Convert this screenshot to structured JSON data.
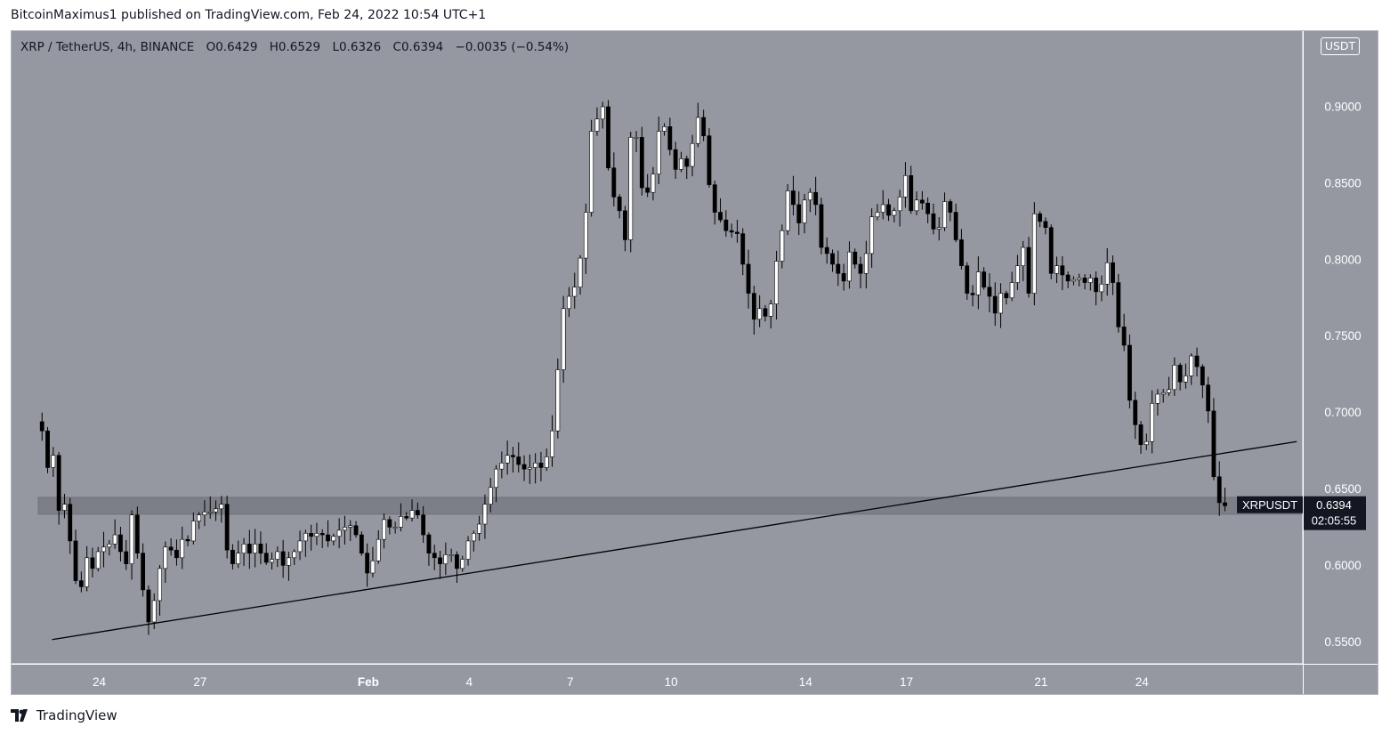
{
  "caption": "BitcoinMaximus1 published on TradingView.com, Feb 24, 2022 10:54 UTC+1",
  "legend": {
    "symbol": "XRP / TetherUS, 4h, BINANCE",
    "open_label": "O",
    "open": "0.6429",
    "high_label": "H",
    "high": "0.6529",
    "low_label": "L",
    "low": "0.6326",
    "close_label": "C",
    "close": "0.6394",
    "change": "−0.0035 (−0.54%)"
  },
  "currency": "USDT",
  "brand": "TradingView",
  "colors": {
    "background": "#9598a1",
    "up_candle": "#ffffff",
    "down_candle": "#000000",
    "zone": "#7c7f87",
    "trendline": "#000000",
    "axis_text": "#ffffff"
  },
  "chart_data": {
    "type": "candlestick",
    "price_ticks": [
      "0.9000",
      "0.8500",
      "0.8000",
      "0.7500",
      "0.7000",
      "0.6500",
      "0.6000",
      "0.5500"
    ],
    "y_values": [
      0.9,
      0.85,
      0.8,
      0.75,
      0.7,
      0.65,
      0.6,
      0.55
    ],
    "x_ticks": [
      {
        "label": "24",
        "day": 24
      },
      {
        "label": "27",
        "day": 27
      },
      {
        "label": "Feb",
        "day": 32
      },
      {
        "label": "4",
        "day": 35
      },
      {
        "label": "7",
        "day": 38
      },
      {
        "label": "10",
        "day": 41
      },
      {
        "label": "14",
        "day": 45
      },
      {
        "label": "17",
        "day": 48
      },
      {
        "label": "21",
        "day": 52
      },
      {
        "label": "24",
        "day": 55
      }
    ],
    "last_price": {
      "label": "XRPUSDT",
      "value": "0.6394",
      "countdown": "02:05:55",
      "price": 0.6394
    },
    "support_zone": [
      0.6335,
      0.6445
    ],
    "trendline": {
      "start": {
        "day": 22.6,
        "price": 0.5515
      },
      "end": {
        "day": 59.6,
        "price": 0.681
      }
    },
    "candles_from": "day 22.3, 4h interval",
    "closes": [
      0.688,
      0.664,
      0.672,
      0.636,
      0.64,
      0.616,
      0.59,
      0.586,
      0.605,
      0.598,
      0.609,
      0.612,
      0.614,
      0.62,
      0.609,
      0.601,
      0.633,
      0.608,
      0.584,
      0.563,
      0.577,
      0.598,
      0.612,
      0.61,
      0.605,
      0.617,
      0.616,
      0.629,
      0.633,
      0.635,
      0.635,
      0.637,
      0.64,
      0.61,
      0.601,
      0.608,
      0.614,
      0.608,
      0.614,
      0.608,
      0.602,
      0.604,
      0.609,
      0.6,
      0.605,
      0.609,
      0.616,
      0.621,
      0.619,
      0.621,
      0.62,
      0.616,
      0.619,
      0.623,
      0.625,
      0.626,
      0.62,
      0.608,
      0.595,
      0.603,
      0.617,
      0.63,
      0.625,
      0.625,
      0.632,
      0.631,
      0.636,
      0.633,
      0.62,
      0.608,
      0.605,
      0.601,
      0.607,
      0.607,
      0.598,
      0.604,
      0.616,
      0.621,
      0.627,
      0.64,
      0.651,
      0.663,
      0.667,
      0.672,
      0.671,
      0.666,
      0.663,
      0.664,
      0.667,
      0.664,
      0.671,
      0.688,
      0.728,
      0.768,
      0.776,
      0.782,
      0.801,
      0.831,
      0.884,
      0.892,
      0.9,
      0.86,
      0.841,
      0.832,
      0.813,
      0.88,
      0.88,
      0.847,
      0.844,
      0.856,
      0.884,
      0.887,
      0.872,
      0.859,
      0.866,
      0.861,
      0.876,
      0.893,
      0.881,
      0.849,
      0.831,
      0.826,
      0.819,
      0.818,
      0.817,
      0.797,
      0.778,
      0.761,
      0.768,
      0.763,
      0.771,
      0.799,
      0.819,
      0.845,
      0.836,
      0.824,
      0.839,
      0.844,
      0.836,
      0.808,
      0.804,
      0.797,
      0.791,
      0.786,
      0.805,
      0.797,
      0.791,
      0.804,
      0.828,
      0.831,
      0.836,
      0.829,
      0.832,
      0.841,
      0.855,
      0.832,
      0.839,
      0.837,
      0.83,
      0.82,
      0.821,
      0.838,
      0.831,
      0.813,
      0.796,
      0.778,
      0.777,
      0.792,
      0.782,
      0.776,
      0.765,
      0.778,
      0.775,
      0.785,
      0.796,
      0.808,
      0.778,
      0.83,
      0.825,
      0.821,
      0.791,
      0.796,
      0.79,
      0.786,
      0.787,
      0.788,
      0.785,
      0.788,
      0.779,
      0.784,
      0.798,
      0.785,
      0.756,
      0.744,
      0.708,
      0.692,
      0.679,
      0.681,
      0.706,
      0.712,
      0.713,
      0.715,
      0.731,
      0.72,
      0.724,
      0.737,
      0.73,
      0.718,
      0.701,
      0.658,
      0.641,
      0.639
    ]
  }
}
